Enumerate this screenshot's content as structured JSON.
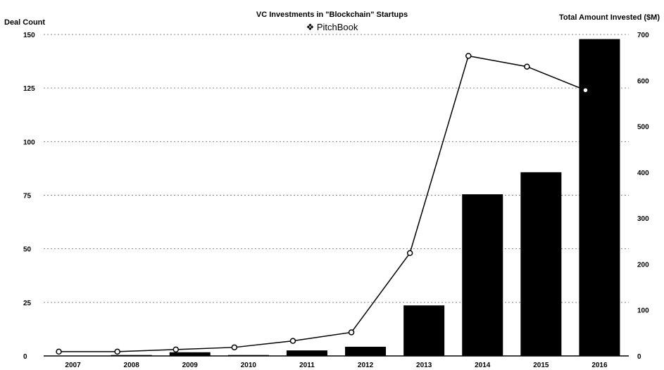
{
  "chart_data": {
    "type": "bar",
    "title": "VC Investments in \"Blockchain\" Startups",
    "brand": "PitchBook",
    "ylabel_left": "Deal Count",
    "ylabel_right": "Total Amount Invested ($M)",
    "categories": [
      "2007",
      "2008",
      "2009",
      "2010",
      "2011",
      "2012",
      "2013",
      "2014",
      "2015",
      "2016"
    ],
    "series": [
      {
        "axis": "right",
        "kind": "bar",
        "values": [
          0,
          2,
          8,
          2,
          12,
          20,
          110,
          352,
          400,
          690
        ]
      },
      {
        "axis": "left",
        "kind": "line",
        "values": [
          2,
          2,
          3,
          4,
          7,
          11,
          48,
          140,
          135,
          124
        ]
      }
    ],
    "y_left": {
      "min": 0,
      "max": 150,
      "ticks": [
        0,
        25,
        50,
        75,
        100,
        125,
        150
      ]
    },
    "y_right": {
      "min": 0,
      "max": 700,
      "ticks": [
        0,
        100,
        200,
        300,
        400,
        500,
        600,
        700
      ]
    },
    "grid": true,
    "colors": {
      "bar": "#000000",
      "line": "#000000",
      "marker_fill": "#ffffff",
      "grid": "#888888"
    }
  }
}
